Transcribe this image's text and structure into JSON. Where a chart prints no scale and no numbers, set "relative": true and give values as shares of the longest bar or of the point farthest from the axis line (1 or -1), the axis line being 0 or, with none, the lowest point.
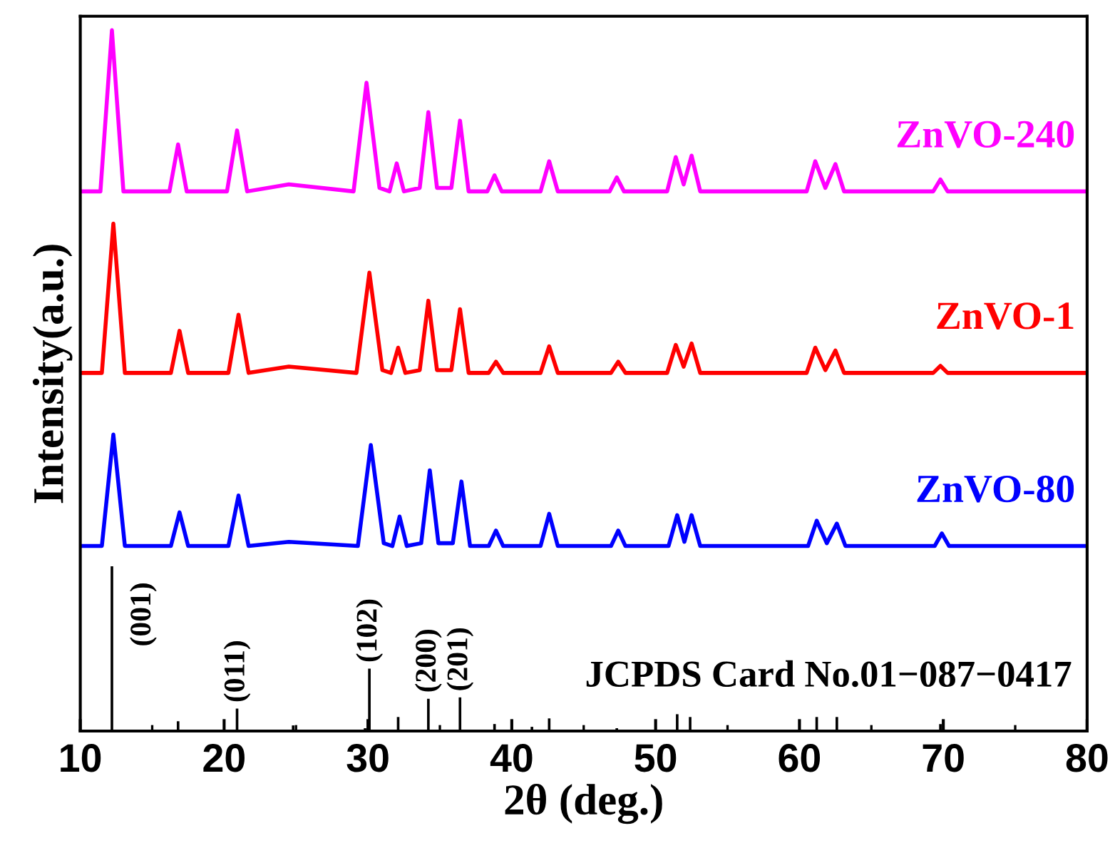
{
  "chart_data": {
    "type": "line",
    "relative": true,
    "xlabel": "2θ (deg.)",
    "ylabel": "Intensity(a.u.)",
    "xlim": [
      10,
      80
    ],
    "xticks": [
      10,
      20,
      30,
      40,
      50,
      60,
      70,
      80
    ],
    "grid": false,
    "legend": false,
    "marker": "none",
    "line_style": "solid",
    "annotations": [
      {
        "text": "(001)",
        "x": 12.2,
        "y": 0.235
      },
      {
        "text": "(011)",
        "x": 20.9,
        "y": 0.032
      },
      {
        "text": "(102)",
        "x": 30.1,
        "y": 0.089
      },
      {
        "text": "(200)",
        "x": 34.2,
        "y": 0.046
      },
      {
        "text": "(201)",
        "x": 36.4,
        "y": 0.048
      },
      "JCPDS Card No.01−087−0417"
    ],
    "series": [
      {
        "name": "ZnVO-240",
        "color": "#ff00ff",
        "x": [
          10,
          11.4,
          12.2,
          13.0,
          16.2,
          16.8,
          17.4,
          20.2,
          20.9,
          21.6,
          24.5,
          29.0,
          29.9,
          30.8,
          31.5,
          32.0,
          32.5,
          33.6,
          34.2,
          34.8,
          35.8,
          36.4,
          37.0,
          38.3,
          38.8,
          39.3,
          42.0,
          42.6,
          43.2,
          46.8,
          47.3,
          47.8,
          50.8,
          51.4,
          51.95,
          52.5,
          53.1,
          60.5,
          61.1,
          61.8,
          62.5,
          63.1,
          69.3,
          69.8,
          70.3,
          80
        ],
        "values": [
          0.77,
          0.77,
          1.0,
          0.77,
          0.77,
          0.837,
          0.77,
          0.77,
          0.857,
          0.77,
          0.78,
          0.77,
          0.925,
          0.775,
          0.77,
          0.81,
          0.77,
          0.775,
          0.883,
          0.775,
          0.775,
          0.871,
          0.77,
          0.77,
          0.793,
          0.77,
          0.77,
          0.813,
          0.77,
          0.77,
          0.79,
          0.77,
          0.77,
          0.819,
          0.78,
          0.821,
          0.77,
          0.77,
          0.813,
          0.775,
          0.809,
          0.77,
          0.77,
          0.787,
          0.77,
          0.77
        ]
      },
      {
        "name": "ZnVO-1",
        "color": "#ff0000",
        "x": [
          10,
          11.5,
          12.3,
          13.1,
          16.3,
          16.9,
          17.5,
          20.3,
          21.0,
          21.7,
          24.5,
          29.2,
          30.1,
          31.0,
          31.6,
          32.1,
          32.6,
          33.6,
          34.2,
          34.8,
          35.8,
          36.4,
          37.0,
          38.4,
          38.9,
          39.4,
          42.0,
          42.6,
          43.2,
          46.9,
          47.4,
          47.9,
          50.8,
          51.4,
          51.95,
          52.5,
          53.1,
          60.5,
          61.1,
          61.8,
          62.5,
          63.1,
          69.3,
          69.8,
          70.3,
          80
        ],
        "values": [
          0.511,
          0.511,
          0.724,
          0.511,
          0.511,
          0.571,
          0.511,
          0.511,
          0.594,
          0.511,
          0.52,
          0.511,
          0.654,
          0.515,
          0.511,
          0.547,
          0.511,
          0.515,
          0.614,
          0.515,
          0.515,
          0.602,
          0.511,
          0.511,
          0.527,
          0.511,
          0.511,
          0.549,
          0.511,
          0.511,
          0.527,
          0.511,
          0.511,
          0.551,
          0.52,
          0.553,
          0.511,
          0.511,
          0.547,
          0.515,
          0.543,
          0.511,
          0.511,
          0.521,
          0.511,
          0.511
        ]
      },
      {
        "name": "ZnVO-80",
        "color": "#0000ff",
        "x": [
          10,
          11.5,
          12.3,
          13.1,
          16.3,
          16.9,
          17.5,
          20.3,
          21.0,
          21.7,
          24.5,
          29.3,
          30.2,
          31.1,
          31.7,
          32.2,
          32.7,
          33.7,
          34.3,
          34.9,
          35.9,
          36.5,
          37.1,
          38.4,
          38.9,
          39.4,
          42.0,
          42.6,
          43.2,
          46.9,
          47.4,
          47.9,
          50.9,
          51.5,
          52.0,
          52.5,
          53.1,
          60.6,
          61.2,
          61.9,
          62.6,
          63.2,
          69.4,
          69.9,
          70.4,
          80
        ],
        "values": [
          0.264,
          0.264,
          0.423,
          0.264,
          0.264,
          0.312,
          0.264,
          0.264,
          0.336,
          0.264,
          0.27,
          0.264,
          0.408,
          0.268,
          0.264,
          0.306,
          0.264,
          0.268,
          0.372,
          0.268,
          0.268,
          0.356,
          0.264,
          0.264,
          0.286,
          0.264,
          0.264,
          0.31,
          0.264,
          0.264,
          0.286,
          0.264,
          0.264,
          0.308,
          0.27,
          0.308,
          0.264,
          0.264,
          0.3,
          0.268,
          0.296,
          0.264,
          0.264,
          0.282,
          0.264,
          0.264
        ]
      },
      {
        "type": "bar",
        "color": "#000000",
        "x": [
          12.2,
          16.8,
          20.9,
          24.8,
          29.8,
          30.1,
          32.1,
          34.2,
          36.4,
          38.8,
          41.4,
          42.6,
          47.3,
          51.5,
          52.4,
          61.2,
          62.6,
          69.8
        ],
        "values": [
          0.235,
          0.014,
          0.032,
          0.008,
          0.004,
          0.089,
          0.02,
          0.046,
          0.048,
          0.01,
          0.006,
          0.018,
          0.004,
          0.024,
          0.02,
          0.02,
          0.02,
          0.01
        ]
      }
    ]
  }
}
